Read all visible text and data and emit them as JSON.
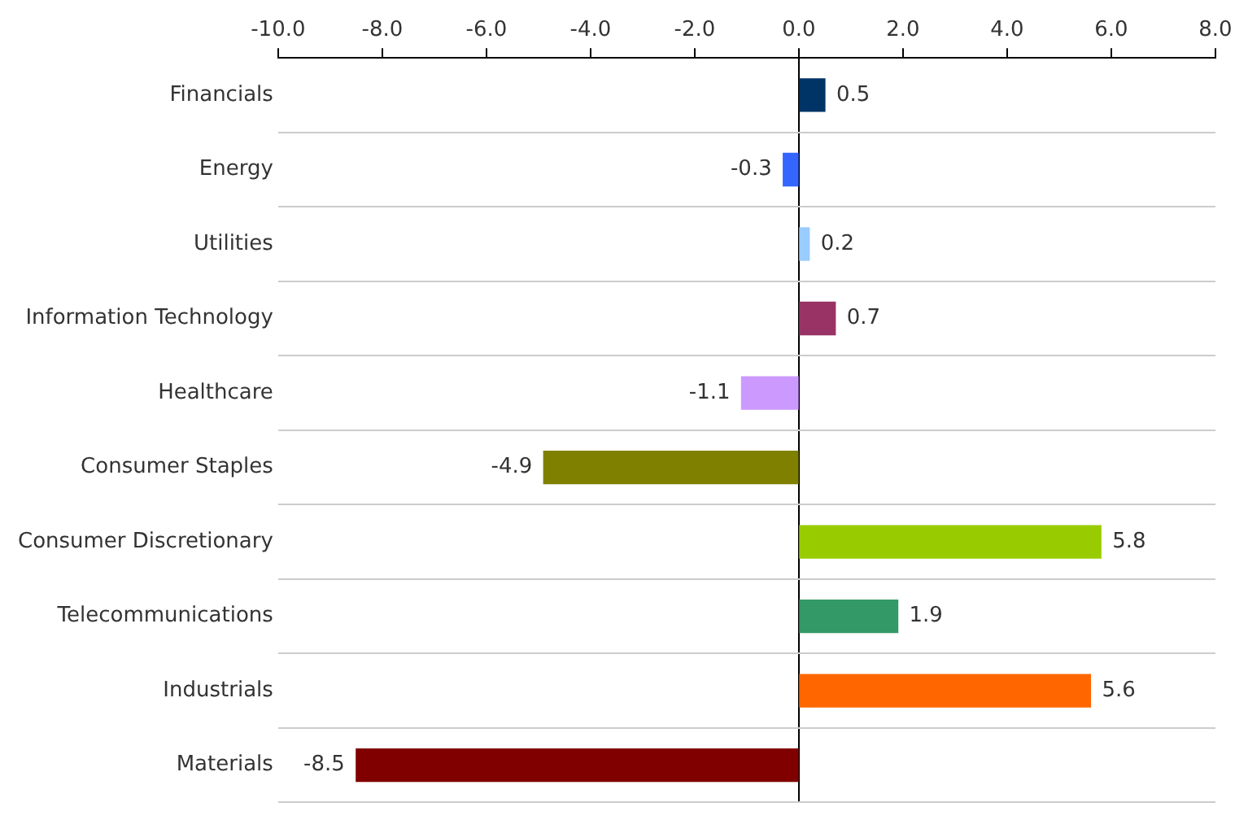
{
  "chart_data": {
    "type": "bar",
    "orientation": "horizontal",
    "categories": [
      "Financials",
      "Energy",
      "Utilities",
      "Information Technology",
      "Healthcare",
      "Consumer Staples",
      "Consumer Discretionary",
      "Telecommunications",
      "Industrials",
      "Materials"
    ],
    "values": [
      0.5,
      -0.3,
      0.2,
      0.7,
      -1.1,
      -4.9,
      5.8,
      1.9,
      5.6,
      -8.5
    ],
    "colors": [
      "#003366",
      "#3366ff",
      "#99ccff",
      "#993366",
      "#cc99ff",
      "#808000",
      "#99cc00",
      "#339966",
      "#ff6600",
      "#800000"
    ],
    "xlim": [
      -10,
      8
    ],
    "xticks": [
      {
        "value": -10,
        "label": "-10.0"
      },
      {
        "value": -8,
        "label": "-8.0"
      },
      {
        "value": -6,
        "label": "-6.0"
      },
      {
        "value": -4,
        "label": "-4.0"
      },
      {
        "value": -2,
        "label": "-2.0"
      },
      {
        "value": 0,
        "label": "0.0"
      },
      {
        "value": 2,
        "label": "2.0"
      },
      {
        "value": 4,
        "label": "4.0"
      },
      {
        "value": 6,
        "label": "6.0"
      },
      {
        "value": 8,
        "label": "8.0"
      }
    ],
    "grid": "y",
    "data_labels": true
  }
}
